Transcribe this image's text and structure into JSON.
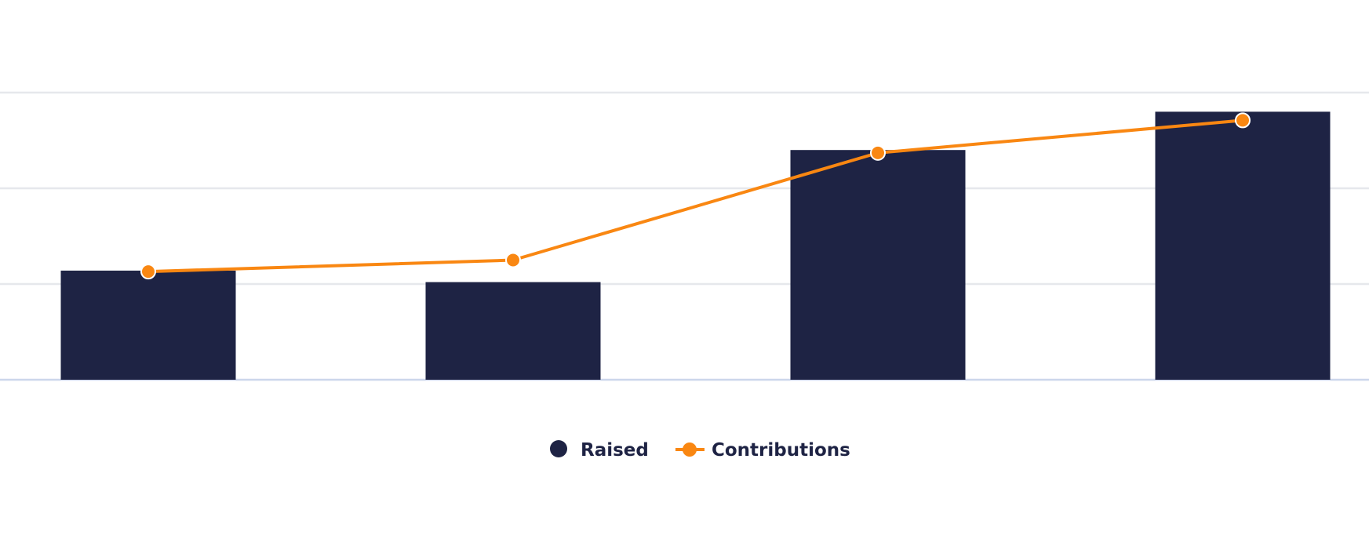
{
  "chart_data": {
    "type": "bar",
    "categories": [
      "",
      "",
      "",
      ""
    ],
    "ylim": [
      0,
      3
    ],
    "grid": true,
    "legend_position": "bottom-center",
    "series": [
      {
        "name": "Raised",
        "type": "bar",
        "color": "#1e2344",
        "values": [
          1.14,
          1.02,
          2.4,
          2.8
        ]
      },
      {
        "name": "Contributions",
        "type": "line",
        "color": "#f98712",
        "values": [
          1.13,
          1.25,
          2.37,
          2.71
        ]
      }
    ]
  }
}
